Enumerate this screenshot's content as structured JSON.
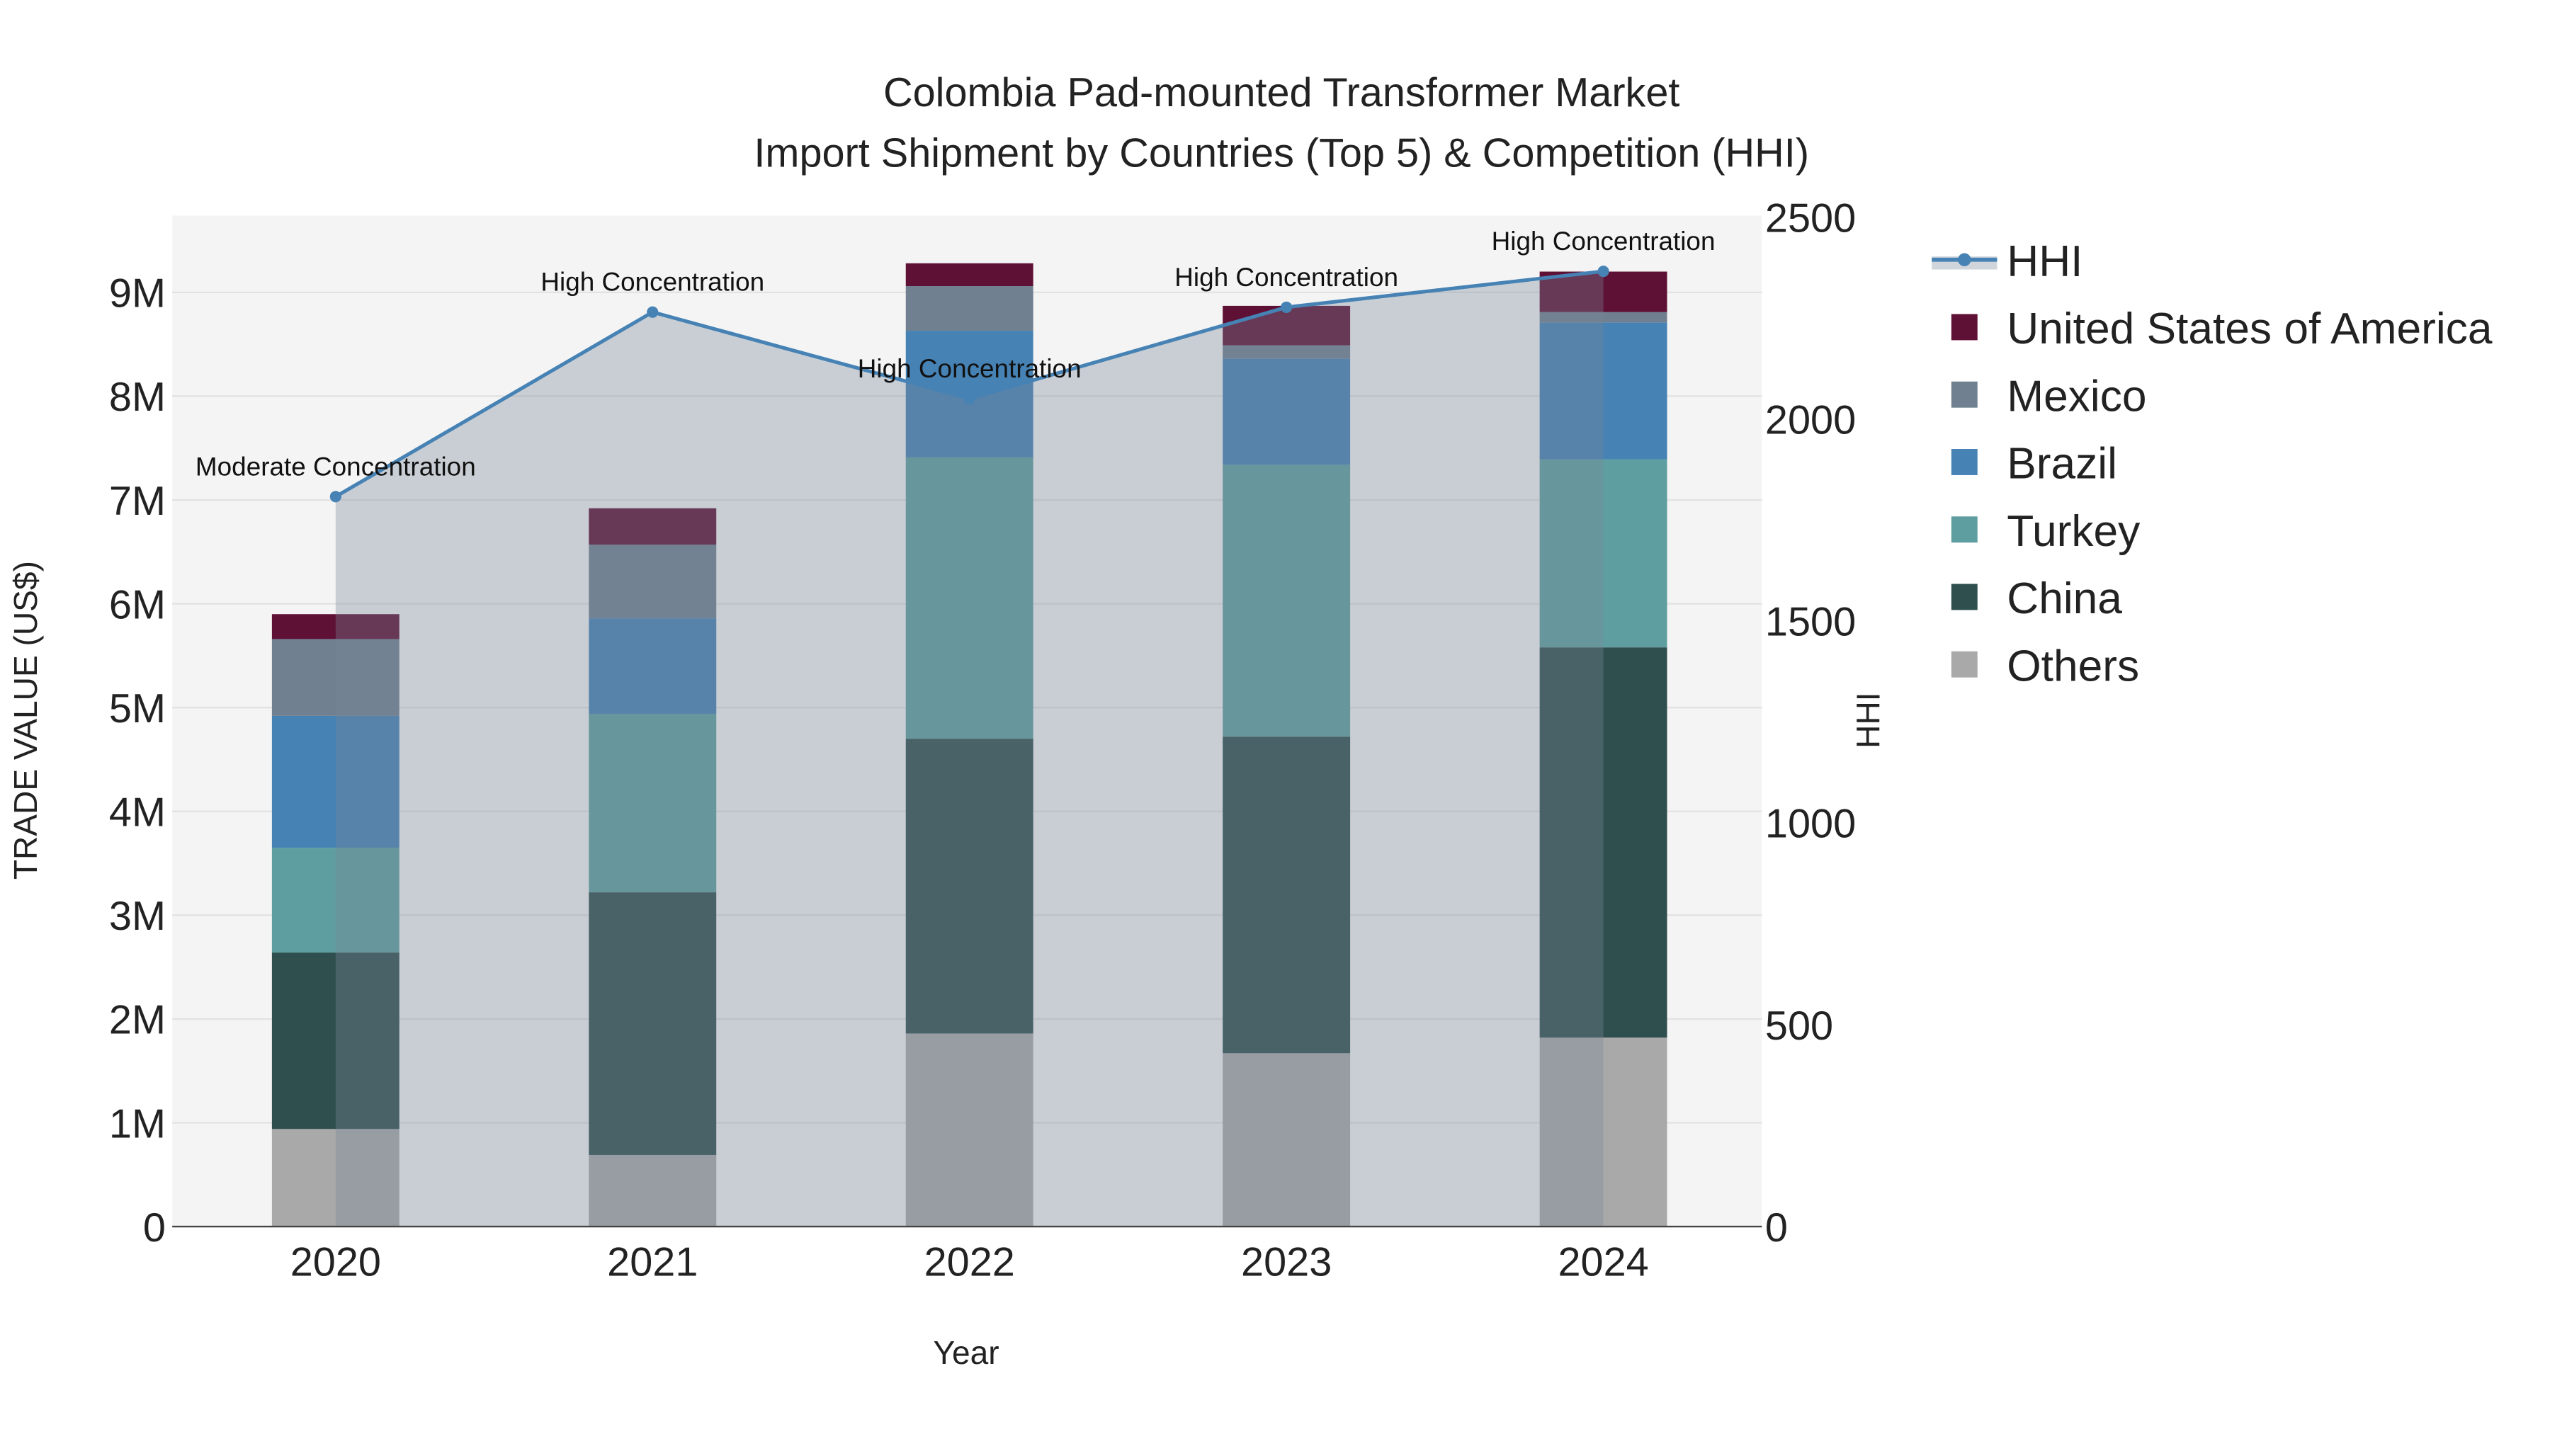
{
  "chart_data": {
    "type": "bar",
    "subtype": "stacked bar with line on secondary axis",
    "title_line1": "Colombia Pad-mounted Transformer Market",
    "title_line2": "Import Shipment by Countries (Top 5) & Competition (HHI)",
    "xlabel": "Year",
    "ylabel": "TRADE VALUE (US$)",
    "y2label": "HHI",
    "categories": [
      "2020",
      "2021",
      "2022",
      "2023",
      "2024"
    ],
    "ylim": [
      0,
      9800000
    ],
    "y2lim": [
      0,
      2500
    ],
    "yticks": [
      0,
      1000000,
      2000000,
      3000000,
      4000000,
      5000000,
      6000000,
      7000000,
      8000000,
      9000000
    ],
    "ytick_labels": [
      "0",
      "1M",
      "2M",
      "3M",
      "4M",
      "5M",
      "6M",
      "7M",
      "8M",
      "9M"
    ],
    "y2ticks": [
      0,
      500,
      1000,
      1500,
      2000,
      2500
    ],
    "y2tick_labels": [
      "0",
      "500",
      "1000",
      "1500",
      "2000",
      "2500"
    ],
    "grid": true,
    "legend_position": "right",
    "series": [
      {
        "name": "Others",
        "color": "#a9a9a9",
        "values": [
          940000,
          690000,
          1860000,
          1670000,
          1820000
        ]
      },
      {
        "name": "China",
        "color": "#2f4f4f",
        "values": [
          1700000,
          2530000,
          2840000,
          3050000,
          3760000
        ]
      },
      {
        "name": "Turkey",
        "color": "#5f9ea0",
        "values": [
          1010000,
          1720000,
          2710000,
          2620000,
          1810000
        ]
      },
      {
        "name": "Brazil",
        "color": "#4682b4",
        "values": [
          1270000,
          920000,
          1220000,
          1020000,
          1320000
        ]
      },
      {
        "name": "Mexico",
        "color": "#708090",
        "values": [
          740000,
          710000,
          430000,
          130000,
          100000
        ]
      },
      {
        "name": "United States of America",
        "color": "#5e1035",
        "values": [
          240000,
          350000,
          220000,
          380000,
          390000
        ]
      }
    ],
    "hhi": {
      "name": "HHI",
      "color": "#4682b4",
      "values": [
        1808,
        2265,
        2051,
        2277,
        2366
      ],
      "annotations": [
        "Moderate Concentration",
        "High Concentration",
        "High Concentration",
        "High Concentration",
        "High Concentration"
      ]
    },
    "legend_order": [
      "HHI",
      "United States of America",
      "Mexico",
      "Brazil",
      "Turkey",
      "China",
      "Others"
    ]
  }
}
